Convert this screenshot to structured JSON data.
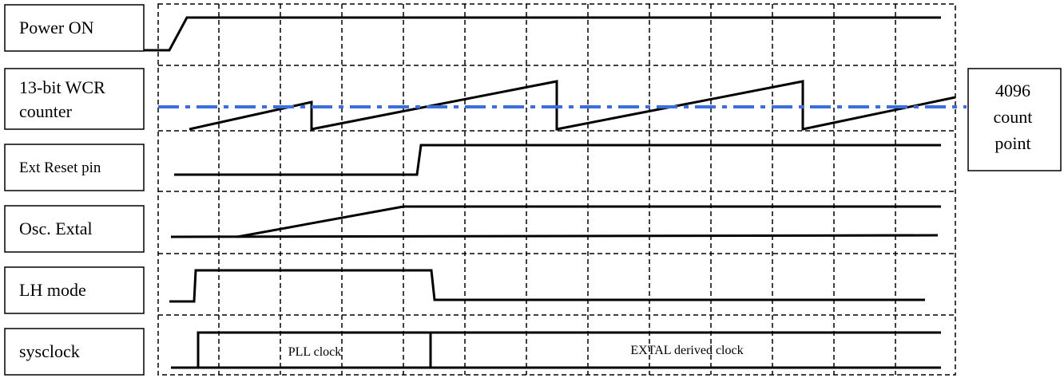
{
  "signals": [
    {
      "label_lines": [
        "Power ON"
      ]
    },
    {
      "label_lines": [
        "13-bit WCR",
        "counter"
      ]
    },
    {
      "label_lines": [
        "Ext Reset pin"
      ]
    },
    {
      "label_lines": [
        "Osc. Extal"
      ]
    },
    {
      "label_lines": [
        "LH mode"
      ]
    },
    {
      "label_lines": [
        "sysclock"
      ]
    }
  ],
  "threshold": {
    "label_lines": [
      "4096",
      "count",
      "point"
    ],
    "color": "#3b6fe0"
  },
  "sysclock": {
    "pll_label": "PLL clock",
    "extal_label": "EXTAL derived clock"
  }
}
